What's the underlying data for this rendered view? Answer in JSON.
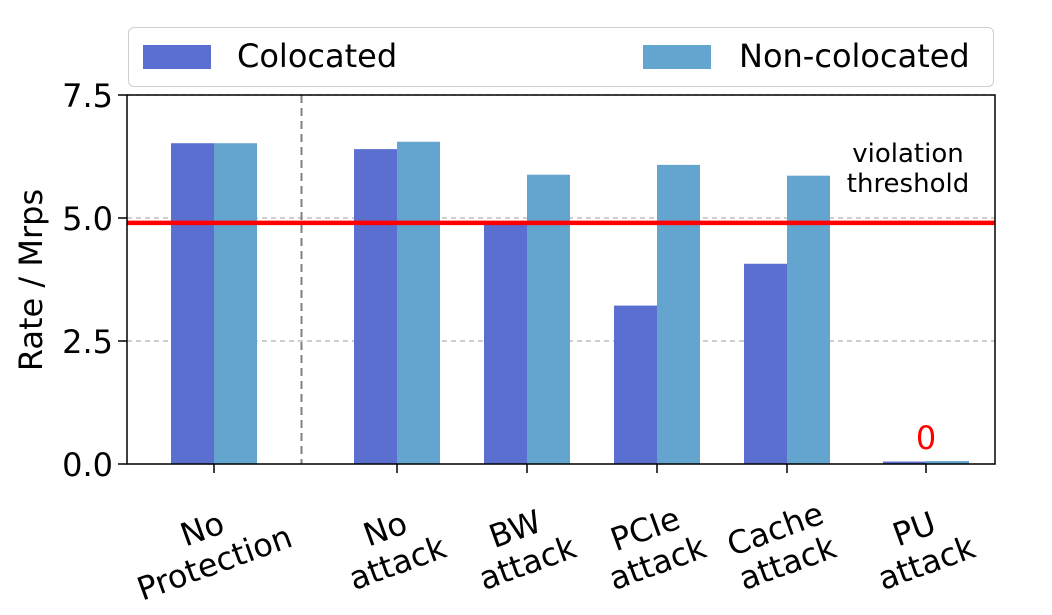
{
  "chart_data": {
    "type": "bar",
    "categories": [
      [
        "No",
        "Protection"
      ],
      [
        "No",
        "attack"
      ],
      [
        "BW",
        "attack"
      ],
      [
        "PCIe",
        "attack"
      ],
      [
        "Cache",
        "attack"
      ],
      [
        "PU",
        "attack"
      ]
    ],
    "series": [
      {
        "name": "Colocated",
        "color": "#5b6fd0",
        "values": [
          6.52,
          6.4,
          4.88,
          3.22,
          4.07,
          0.05
        ]
      },
      {
        "name": "Non-colocated",
        "color": "#63a5cf",
        "values": [
          6.52,
          6.55,
          5.88,
          6.08,
          5.86,
          0.06
        ]
      }
    ],
    "ylabel": "Rate / Mrps",
    "ylim": [
      0,
      7.5
    ],
    "yticks": [
      "0.0",
      "2.5",
      "5.0",
      "7.5"
    ],
    "ytick_values": [
      0,
      2.5,
      5.0,
      7.5
    ],
    "threshold": {
      "value": 4.9,
      "color": "#ff0000",
      "label": [
        "violation",
        "threshold"
      ]
    },
    "annotations": [
      {
        "category_index": 5,
        "text": "0",
        "color": "#ff0000"
      }
    ],
    "grid": "horizontal dashed",
    "separator_after_category": 0,
    "legend_position": "top"
  }
}
